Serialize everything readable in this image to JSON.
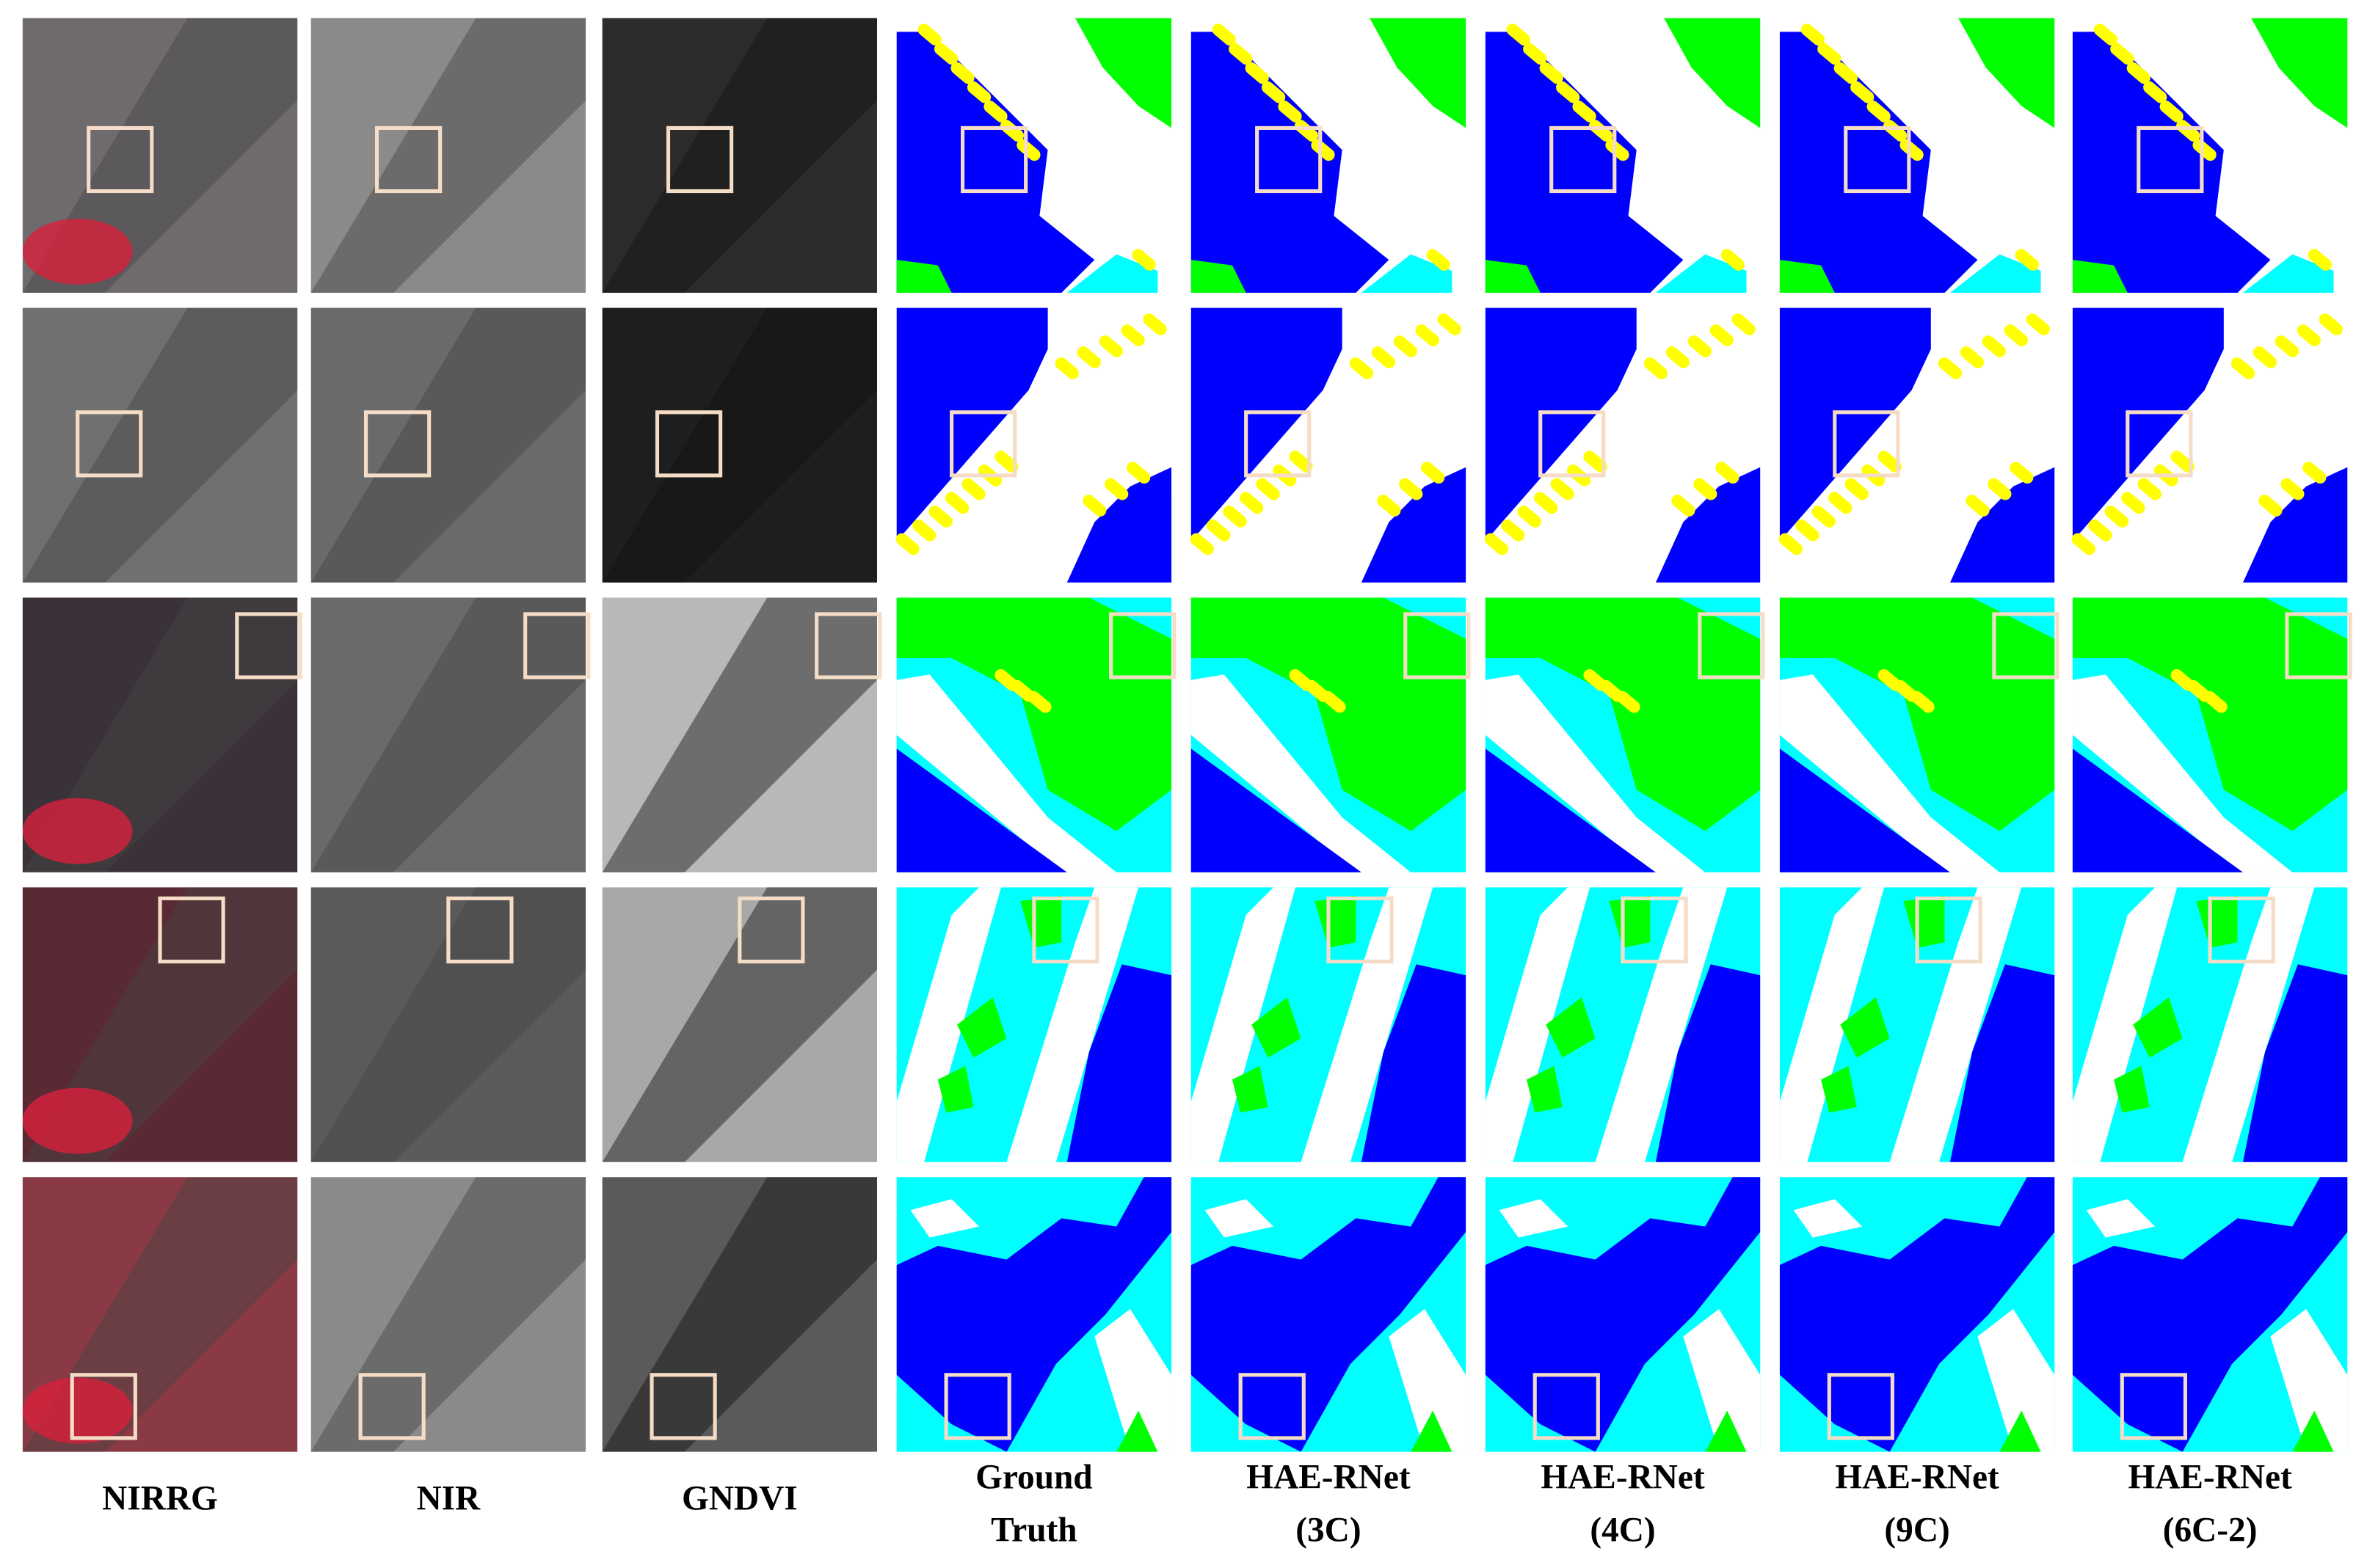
{
  "columns": [
    [
      "NIRRG"
    ],
    [
      "NIR"
    ],
    [
      "GNDVI"
    ],
    [
      "Ground",
      "Truth"
    ],
    [
      "HAE-RNet",
      "(3C)"
    ],
    [
      "HAE-RNet",
      "(4C)"
    ],
    [
      "HAE-RNet",
      "(9C)"
    ],
    [
      "HAE-RNet",
      "(6C-2)"
    ]
  ]
}
